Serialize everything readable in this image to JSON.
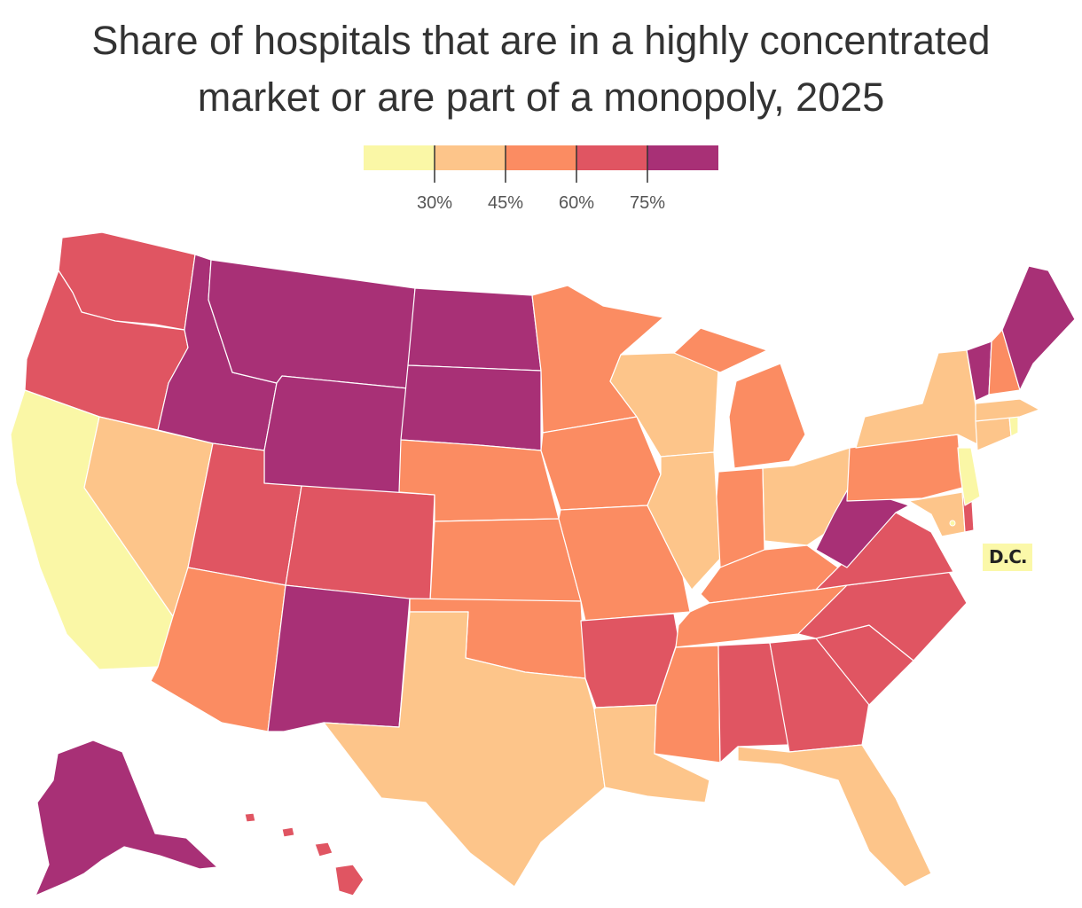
{
  "title_lines": [
    "Share of hospitals that are in a highly concentrated",
    "market or are part of a monopoly, 2025"
  ],
  "legend": {
    "bins": [
      {
        "color": "#faf7a6"
      },
      {
        "color": "#fdc58a"
      },
      {
        "color": "#fb8c62"
      },
      {
        "color": "#e05562"
      },
      {
        "color": "#a83076"
      }
    ],
    "thresholds": [
      "30%",
      "45%",
      "60%",
      "75%"
    ]
  },
  "dc_label": "D.C.",
  "colors": {
    "bin1": "#faf7a6",
    "bin2": "#fdc58a",
    "bin3": "#fb8c62",
    "bin4": "#e05562",
    "bin5": "#a83076"
  },
  "chart_data": {
    "type": "choropleth",
    "legend_placement": "top-center",
    "bin_edges_percent": [
      30,
      45,
      60,
      75
    ],
    "state_bins": {
      "CA": 1,
      "NJ": 1,
      "RI": 1,
      "DC": 1,
      "NV": 2,
      "TX": 2,
      "LA": 2,
      "FL": 2,
      "WI": 2,
      "IL": 2,
      "OH": 2,
      "NY": 2,
      "MA": 2,
      "CT": 2,
      "MD": 2,
      "AZ": 3,
      "NE": 3,
      "KS": 3,
      "OK": 3,
      "MN": 3,
      "IA": 3,
      "MO": 3,
      "MI": 3,
      "IN": 3,
      "KY": 3,
      "TN": 3,
      "MS": 3,
      "PA": 3,
      "NH": 3,
      "WA": 4,
      "OR": 4,
      "UT": 4,
      "CO": 4,
      "AR": 4,
      "AL": 4,
      "GA": 4,
      "SC": 4,
      "NC": 4,
      "VA": 4,
      "DE": 4,
      "HI": 4,
      "ID": 5,
      "MT": 5,
      "WY": 5,
      "ND": 5,
      "SD": 5,
      "NM": 5,
      "WV": 5,
      "VT": 5,
      "ME": 5,
      "AK": 5
    }
  }
}
